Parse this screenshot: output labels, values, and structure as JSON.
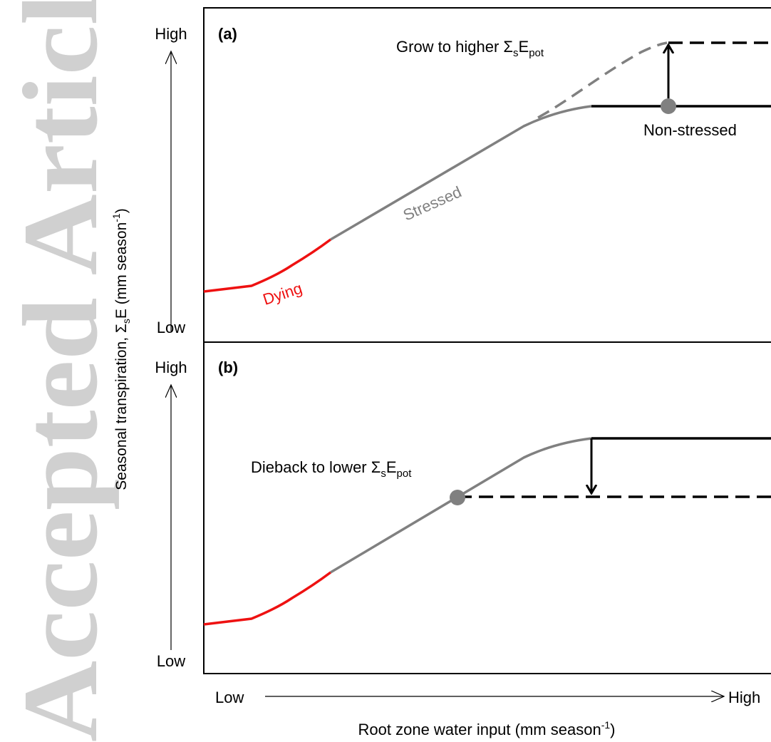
{
  "watermark": "Accepted Article",
  "y_axis_title": {
    "main": "Seasonal transpiration, ",
    "sigma": "Σ",
    "sub": "s",
    "mid": "E (mm season",
    "sup": "-1",
    "end": ")"
  },
  "x_axis_title": {
    "main": "Root zone water input (mm season",
    "sup": "-1",
    "end": ")"
  },
  "x_axis": {
    "low": "Low",
    "high": "High"
  },
  "panel_a": {
    "tag": "(a)",
    "y_high": "High",
    "y_low": "Low",
    "dying": "Dying",
    "stressed": "Stressed",
    "non_stressed": "Non-stressed",
    "grow": {
      "text": "Grow to higher ",
      "sigma": "Σ",
      "sub1": "s",
      "e": "E",
      "sub2": "pot"
    }
  },
  "panel_b": {
    "tag": "(b)",
    "y_high": "High",
    "y_low": "Low",
    "dieback": {
      "text": "Dieback to lower ",
      "sigma": "Σ",
      "sub1": "s",
      "e": "E",
      "sub2": "pot"
    }
  },
  "colors": {
    "dying": "#ee1111",
    "stressed": "#808080",
    "potential": "#000000"
  }
}
